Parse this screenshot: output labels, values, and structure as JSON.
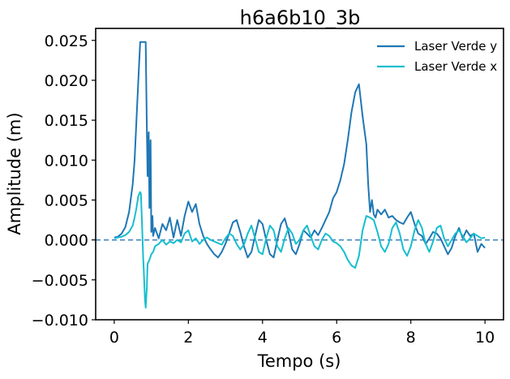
{
  "chart_data": {
    "type": "line",
    "title": "h6a6b10_3b",
    "xlabel": "Tempo (s)",
    "ylabel": "Amplitude (m)",
    "xlim": [
      -0.5,
      10.5
    ],
    "ylim": [
      -0.01,
      0.0265
    ],
    "xticks": [
      0,
      2,
      4,
      6,
      8,
      10
    ],
    "xtick_labels": [
      "0",
      "2",
      "4",
      "6",
      "8",
      "10"
    ],
    "yticks": [
      -0.01,
      -0.005,
      0.0,
      0.005,
      0.01,
      0.015,
      0.02,
      0.025
    ],
    "ytick_labels": [
      "−0.010",
      "−0.005",
      "0.000",
      "0.005",
      "0.010",
      "0.015",
      "0.020",
      "0.025"
    ],
    "grid": false,
    "legend_position": "top-right",
    "reference_line": {
      "y": 0.0,
      "style": "dashed",
      "color": "#2b7bb9"
    },
    "series": [
      {
        "name": "Laser Verde y",
        "color": "#1f77b4",
        "x": [
          0.0,
          0.1,
          0.2,
          0.3,
          0.4,
          0.5,
          0.55,
          0.6,
          0.65,
          0.7,
          0.75,
          0.8,
          0.85,
          0.88,
          0.9,
          0.93,
          0.95,
          0.98,
          1.0,
          1.03,
          1.05,
          1.1,
          1.2,
          1.3,
          1.4,
          1.5,
          1.6,
          1.7,
          1.8,
          1.9,
          2.0,
          2.1,
          2.2,
          2.3,
          2.4,
          2.5,
          2.6,
          2.7,
          2.8,
          2.9,
          3.0,
          3.1,
          3.2,
          3.3,
          3.4,
          3.5,
          3.6,
          3.7,
          3.8,
          3.9,
          4.0,
          4.1,
          4.2,
          4.3,
          4.4,
          4.5,
          4.6,
          4.7,
          4.8,
          4.9,
          5.0,
          5.1,
          5.2,
          5.3,
          5.4,
          5.5,
          5.6,
          5.7,
          5.8,
          5.9,
          6.0,
          6.1,
          6.2,
          6.3,
          6.4,
          6.5,
          6.6,
          6.7,
          6.8,
          6.85,
          6.9,
          6.95,
          7.0,
          7.05,
          7.1,
          7.2,
          7.3,
          7.4,
          7.5,
          7.6,
          7.7,
          7.8,
          7.9,
          8.0,
          8.1,
          8.2,
          8.3,
          8.4,
          8.5,
          8.6,
          8.7,
          8.8,
          8.9,
          9.0,
          9.1,
          9.2,
          9.3,
          9.4,
          9.5,
          9.6,
          9.7,
          9.8,
          9.9,
          10.0
        ],
        "y": [
          0.0003,
          0.0004,
          0.0008,
          0.0016,
          0.0035,
          0.007,
          0.01,
          0.015,
          0.02,
          0.0248,
          0.0248,
          0.0248,
          0.0248,
          0.014,
          0.008,
          0.0135,
          0.004,
          0.0125,
          0.001,
          0.003,
          0.0005,
          0.0015,
          0.0002,
          0.002,
          0.0012,
          0.0028,
          0.0003,
          0.0025,
          0.0005,
          0.003,
          0.0048,
          0.0035,
          0.0045,
          0.002,
          0.0005,
          -0.0005,
          -0.0012,
          -0.0018,
          -0.0022,
          -0.0015,
          -0.0005,
          0.0008,
          0.0022,
          0.0025,
          0.001,
          -0.0008,
          -0.0022,
          -0.0015,
          0.0005,
          0.0025,
          0.002,
          0.0,
          -0.0018,
          -0.0022,
          0.0,
          0.002,
          0.0027,
          0.001,
          -0.0012,
          -0.0018,
          -0.0005,
          0.0012,
          0.0008,
          0.0003,
          0.0012,
          0.0006,
          0.0015,
          0.0025,
          0.0035,
          0.0052,
          0.006,
          0.0075,
          0.0095,
          0.0125,
          0.016,
          0.0185,
          0.0195,
          0.0155,
          0.012,
          0.007,
          0.0035,
          0.005,
          0.0032,
          0.0028,
          0.0038,
          0.0032,
          0.0038,
          0.0028,
          0.003,
          0.0025,
          0.0022,
          0.002,
          0.0028,
          0.0035,
          0.002,
          0.0008,
          0.0005,
          -0.0005,
          0.0002,
          0.001,
          0.0008,
          0.0002,
          -0.0008,
          -0.0018,
          -0.001,
          0.0005,
          0.0015,
          0.0002,
          0.0012,
          0.0005,
          0.0008,
          -0.0015,
          -0.0005,
          -0.001
        ],
        "stepwise": false
      },
      {
        "name": "Laser Verde x",
        "color": "#17becf",
        "x": [
          0.0,
          0.1,
          0.2,
          0.3,
          0.4,
          0.5,
          0.55,
          0.6,
          0.65,
          0.7,
          0.72,
          0.75,
          0.78,
          0.8,
          0.83,
          0.85,
          0.88,
          0.9,
          0.95,
          1.0,
          1.05,
          1.1,
          1.2,
          1.3,
          1.4,
          1.5,
          1.6,
          1.7,
          1.8,
          1.9,
          2.0,
          2.1,
          2.2,
          2.3,
          2.4,
          2.5,
          2.6,
          2.7,
          2.8,
          2.9,
          3.0,
          3.1,
          3.2,
          3.3,
          3.4,
          3.5,
          3.6,
          3.7,
          3.8,
          3.9,
          4.0,
          4.1,
          4.2,
          4.3,
          4.4,
          4.5,
          4.6,
          4.7,
          4.8,
          4.9,
          5.0,
          5.1,
          5.2,
          5.3,
          5.4,
          5.5,
          5.6,
          5.7,
          5.8,
          5.9,
          6.0,
          6.1,
          6.2,
          6.3,
          6.4,
          6.5,
          6.6,
          6.7,
          6.8,
          6.9,
          7.0,
          7.1,
          7.2,
          7.3,
          7.4,
          7.5,
          7.6,
          7.7,
          7.8,
          7.9,
          8.0,
          8.1,
          8.2,
          8.3,
          8.4,
          8.5,
          8.6,
          8.7,
          8.8,
          8.9,
          9.0,
          9.1,
          9.2,
          9.3,
          9.4,
          9.5,
          9.6,
          9.7,
          9.8,
          9.9,
          10.0
        ],
        "y": [
          0.0002,
          0.0003,
          0.0004,
          0.0006,
          0.001,
          0.0018,
          0.0028,
          0.004,
          0.0055,
          0.006,
          0.0058,
          0.002,
          -0.002,
          -0.004,
          -0.0075,
          -0.0085,
          -0.006,
          -0.003,
          -0.0025,
          -0.0018,
          -0.0015,
          -0.0008,
          -0.0005,
          0.0,
          -0.0006,
          -0.0002,
          -0.0004,
          0.0,
          -0.0003,
          0.0008,
          0.0012,
          -0.0002,
          0.0002,
          -0.0005,
          0.0,
          0.0003,
          0.0,
          -0.0002,
          -0.0004,
          -0.0006,
          0.0002,
          0.0008,
          0.0005,
          -0.0005,
          -0.0012,
          -0.0006,
          0.0008,
          0.0018,
          0.0002,
          -0.0015,
          -0.0018,
          0.0002,
          0.0018,
          0.0012,
          -0.0008,
          -0.0015,
          0.0002,
          0.0015,
          0.0008,
          -0.0005,
          0.0,
          0.0012,
          0.0018,
          0.0005,
          -0.0008,
          -0.0012,
          0.0,
          0.0008,
          0.0005,
          -0.0002,
          -0.0004,
          -0.0008,
          -0.0015,
          -0.0025,
          -0.0032,
          -0.0035,
          -0.002,
          0.0012,
          0.003,
          0.0028,
          0.0025,
          0.001,
          -0.0008,
          -0.0015,
          -0.0005,
          0.0015,
          0.0022,
          0.0008,
          -0.0012,
          -0.002,
          -0.0008,
          0.0012,
          0.0025,
          0.0015,
          -0.0005,
          -0.0015,
          -0.0002,
          0.0015,
          0.0018,
          0.0002,
          -0.0008,
          0.0,
          0.0008,
          0.0012,
          0.0005,
          -0.0003,
          0.0002,
          0.0008,
          0.0005,
          0.0002,
          0.0003
        ]
      }
    ]
  }
}
